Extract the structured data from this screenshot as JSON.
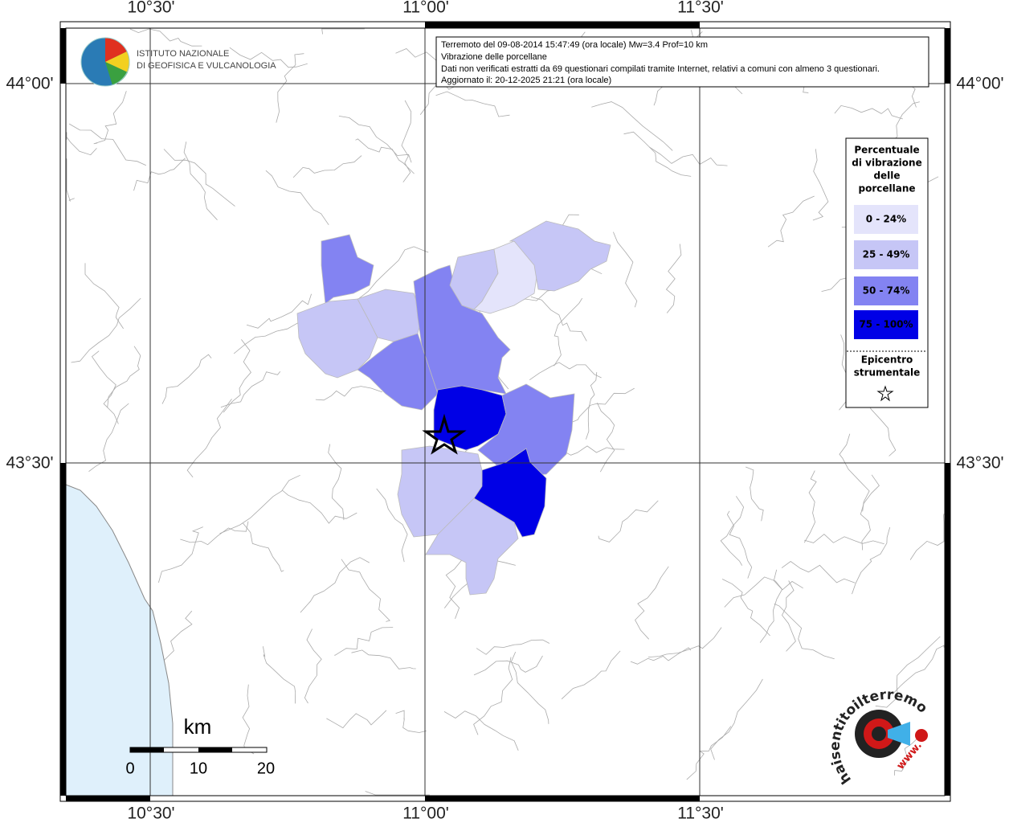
{
  "axis_labels": {
    "top": [
      "10°30'",
      "11°00'",
      "11°30'"
    ],
    "bottom": [
      "10°30'",
      "11°00'",
      "11°30'"
    ],
    "left": [
      "44°00'",
      "43°30'"
    ],
    "right": [
      "44°00'",
      "43°30'"
    ]
  },
  "logo": {
    "line1": "ISTITUTO NAZIONALE",
    "line2": "DI GEOFISICA E VULCANOLOGIA"
  },
  "info": {
    "lines": [
      "Terremoto del 09-08-2014 15:47:49 (ora locale) Mw=3.4 Prof=10 km",
      "Vibrazione delle porcellane",
      "Dati non verificati estratti da 69 questionari compilati tramite Internet, relativi a comuni con almeno 3 questionari.",
      "Aggiornato il: 20-12-2025 21:21 (ora locale)"
    ]
  },
  "legend": {
    "title_lines": [
      "Percentuale",
      "di vibrazione",
      "delle",
      "porcellane"
    ],
    "items": [
      {
        "label": "0 - 24%",
        "color": "#e4e4fb"
      },
      {
        "label": "25 - 49%",
        "color": "#c6c6f6"
      },
      {
        "label": "50 - 74%",
        "color": "#8383f2"
      },
      {
        "label": "75 - 100%",
        "color": "#0000e6"
      }
    ],
    "epicenter_lines": [
      "Epicentro",
      "strumentale"
    ]
  },
  "scale": {
    "unit": "km",
    "ticks": [
      "0",
      "10",
      "20"
    ]
  },
  "badge": {
    "text": "haisentitoilterremoto.it",
    "www": "www."
  }
}
